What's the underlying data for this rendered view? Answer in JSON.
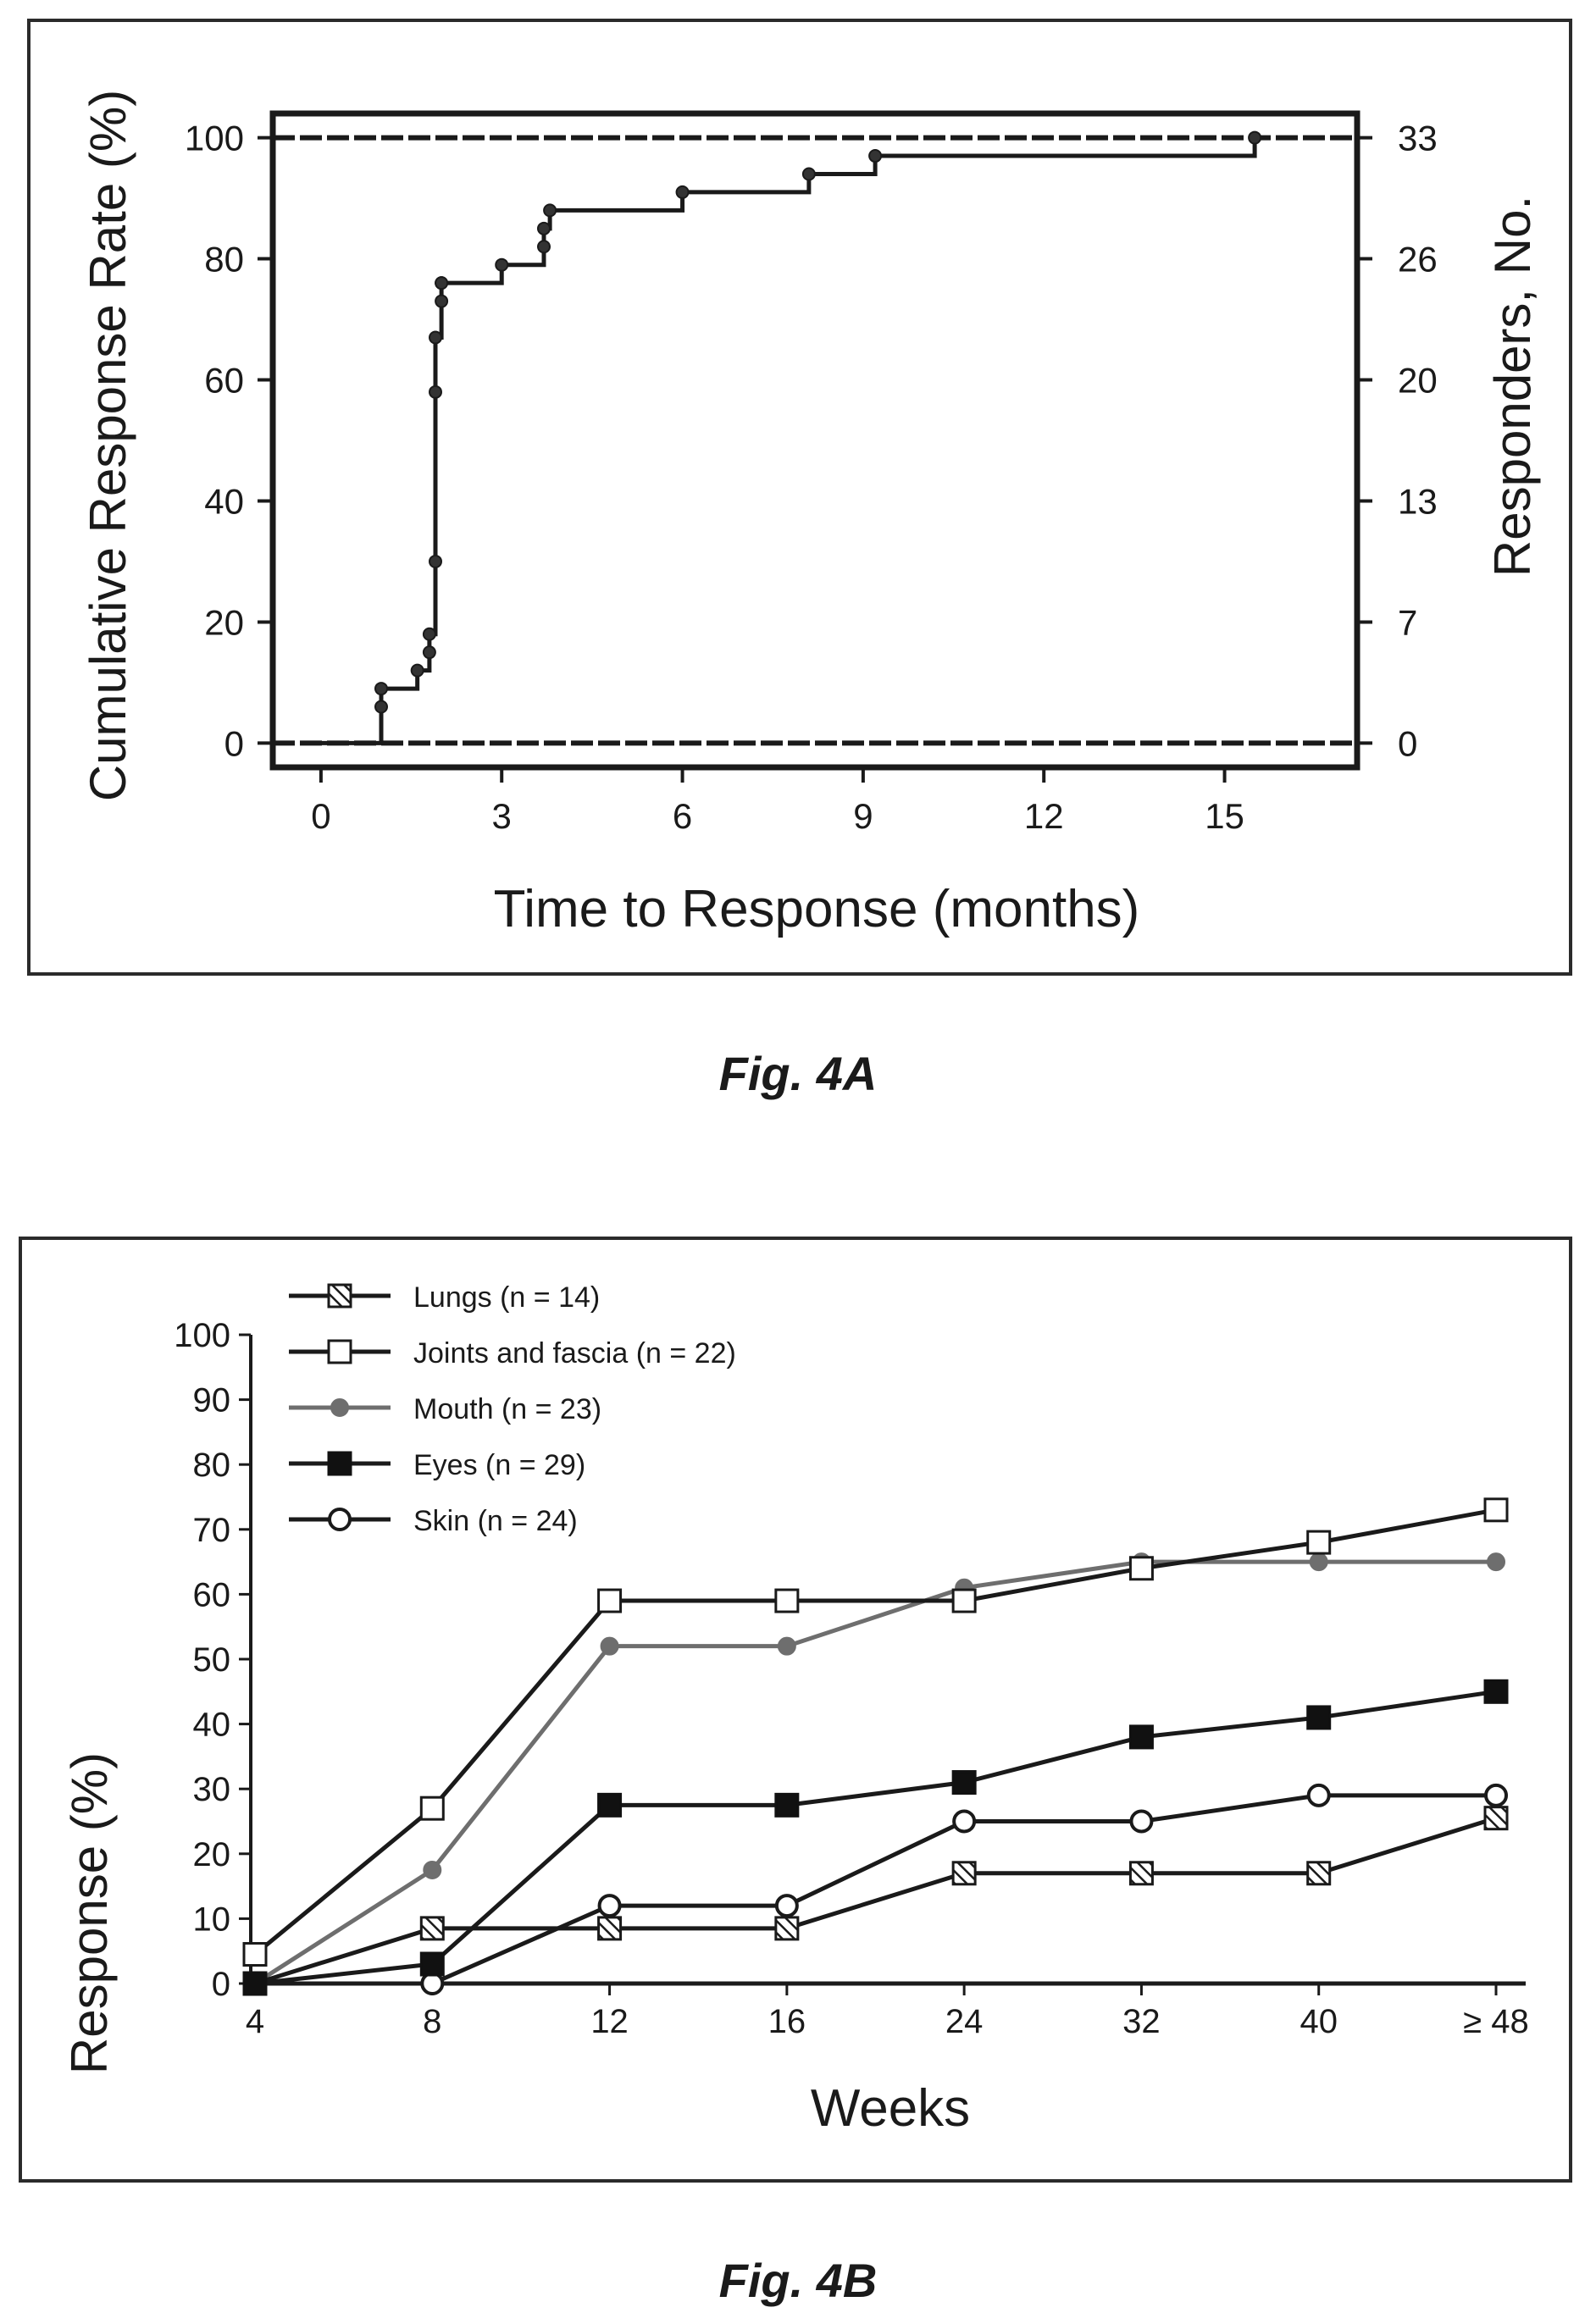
{
  "figures": {
    "caption_a": "Fig. 4A",
    "caption_b": "Fig. 4B"
  },
  "chart_data": [
    {
      "type": "line",
      "step": true,
      "xlabel": "Time to Response (months)",
      "ylabel": "Cumulative Response Rate (%)",
      "ylabel_right": "Responders, No.",
      "xlim": [
        -0.8,
        17.2
      ],
      "ylim": [
        -4,
        104
      ],
      "x_ticks": [
        0,
        3,
        6,
        9,
        12,
        15
      ],
      "y_ticks": [
        0,
        20,
        40,
        60,
        80,
        100
      ],
      "y_right_ticks": [
        {
          "value": 0,
          "label": "0"
        },
        {
          "value": 20,
          "label": "7"
        },
        {
          "value": 40,
          "label": "13"
        },
        {
          "value": 60,
          "label": "20"
        },
        {
          "value": 80,
          "label": "26"
        },
        {
          "value": 100,
          "label": "33"
        }
      ],
      "reference_lines": [
        0,
        100
      ],
      "grid": false,
      "series": [
        {
          "x": [
            0,
            1.0,
            1.0,
            1.0,
            1.6,
            1.8,
            1.8,
            1.9,
            1.9,
            1.9,
            2.0,
            2.0,
            2.0,
            3.0,
            3.7,
            3.7,
            3.8,
            6.0,
            8.1,
            9.2,
            15.5
          ],
          "y": [
            0,
            0,
            6,
            9,
            12,
            15,
            18,
            30,
            58,
            67,
            73,
            76,
            76,
            79,
            82,
            85,
            88,
            91,
            94,
            97,
            100
          ]
        }
      ]
    },
    {
      "type": "line",
      "xlabel": "Weeks",
      "ylabel": "Response (%)",
      "categories": [
        "4",
        "8",
        "12",
        "16",
        "24",
        "32",
        "40",
        "≥ 48"
      ],
      "ylim": [
        0,
        100
      ],
      "y_ticks": [
        0,
        10,
        20,
        30,
        40,
        50,
        60,
        70,
        80,
        90,
        100
      ],
      "grid": false,
      "legend": "top-left",
      "series": [
        {
          "name": "Lungs (n = 14)",
          "marker": "hatched-square",
          "values": [
            0,
            8.5,
            8.5,
            8.5,
            17,
            17,
            17,
            25.5
          ]
        },
        {
          "name": "Joints and fascia (n = 22)",
          "marker": "open-square",
          "values": [
            4.5,
            27,
            59,
            59,
            59,
            64,
            68,
            73
          ]
        },
        {
          "name": "Mouth (n = 23)",
          "marker": "gray-circle",
          "values": [
            0,
            17.5,
            52,
            52,
            61,
            65,
            65,
            65
          ]
        },
        {
          "name": "Eyes (n = 29)",
          "marker": "filled-square",
          "values": [
            0,
            3,
            27.5,
            27.5,
            31,
            38,
            41,
            45
          ]
        },
        {
          "name": "Skin (n = 24)",
          "marker": "open-circle",
          "values": [
            0,
            0,
            12,
            12,
            25,
            25,
            29,
            29
          ]
        }
      ]
    }
  ]
}
